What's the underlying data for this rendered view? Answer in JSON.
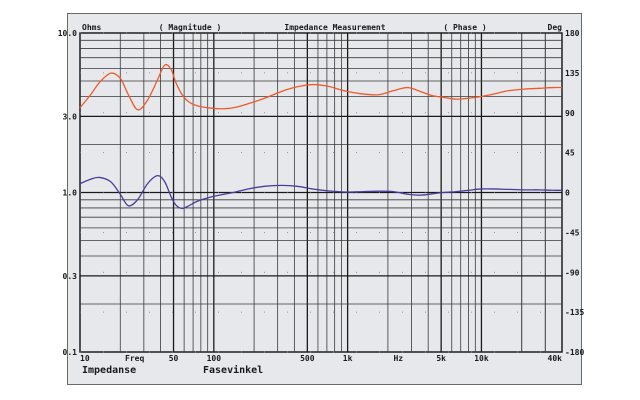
{
  "chart_data": {
    "type": "line",
    "title": "Impedance Measurement",
    "left_header": "Ohms",
    "left_center_header": "( Magnitude )",
    "right_center_header": "( Phase )",
    "right_header": "Deg",
    "xlabel_inline": "Freq",
    "xunit_inline": "Hz",
    "x_scale": "log",
    "y_scale": "log",
    "xlim": [
      10,
      40000
    ],
    "ylim": [
      0.1,
      10.0
    ],
    "y2lim": [
      -180,
      180
    ],
    "x_ticks": [
      {
        "value": 10,
        "label": "10"
      },
      {
        "value": 50,
        "label": "50"
      },
      {
        "value": 100,
        "label": "100"
      },
      {
        "value": 500,
        "label": "500"
      },
      {
        "value": 1000,
        "label": "1k"
      },
      {
        "value": 5000,
        "label": "5k"
      },
      {
        "value": 10000,
        "label": "10k"
      },
      {
        "value": 40000,
        "label": "40k"
      }
    ],
    "y_ticks": [
      {
        "value": 10.0,
        "label": "10.0"
      },
      {
        "value": 3.0,
        "label": "3.0"
      },
      {
        "value": 1.0,
        "label": "1.0"
      },
      {
        "value": 0.3,
        "label": "0.3"
      },
      {
        "value": 0.1,
        "label": "0.1"
      }
    ],
    "y2_ticks": [
      {
        "value": 180,
        "label": "180"
      },
      {
        "value": 135,
        "label": "135"
      },
      {
        "value": 90,
        "label": "90"
      },
      {
        "value": 45,
        "label": "45"
      },
      {
        "value": 0,
        "label": "0"
      },
      {
        "value": -45,
        "label": "-45"
      },
      {
        "value": -90,
        "label": "-90"
      },
      {
        "value": -135,
        "label": "-135"
      },
      {
        "value": -180,
        "label": "-180"
      }
    ],
    "grid": true,
    "series": [
      {
        "name": "Impedanse",
        "axis": "left",
        "color": "#f05a28",
        "x": [
          10,
          12,
          14,
          17,
          20,
          23,
          27,
          32,
          38,
          43,
          48,
          52,
          58,
          65,
          75,
          90,
          110,
          140,
          180,
          240,
          320,
          420,
          550,
          700,
          850,
          1000,
          1300,
          1700,
          2200,
          2800,
          3500,
          4300,
          5200,
          6500,
          8000,
          10000,
          12500,
          16000,
          21000,
          27000,
          34000,
          40000
        ],
        "y": [
          3.4,
          4.1,
          4.9,
          5.6,
          5.2,
          4.1,
          3.3,
          3.8,
          5.1,
          6.3,
          5.9,
          4.9,
          4.1,
          3.7,
          3.5,
          3.4,
          3.35,
          3.4,
          3.6,
          3.9,
          4.3,
          4.6,
          4.75,
          4.65,
          4.45,
          4.3,
          4.15,
          4.1,
          4.35,
          4.55,
          4.3,
          4.05,
          3.95,
          3.85,
          3.9,
          4.0,
          4.15,
          4.35,
          4.45,
          4.5,
          4.55,
          4.55
        ]
      },
      {
        "name": "Fasevinkel",
        "axis": "right",
        "color": "#4a3c9a",
        "x": [
          10,
          12,
          14,
          17,
          20,
          23,
          27,
          32,
          38,
          43,
          48,
          52,
          58,
          65,
          75,
          90,
          110,
          140,
          180,
          240,
          320,
          420,
          550,
          700,
          850,
          1000,
          1300,
          1700,
          2200,
          2800,
          3500,
          4300,
          5200,
          6500,
          8000,
          10000,
          12500,
          16000,
          21000,
          27000,
          34000,
          40000
        ],
        "y": [
          10,
          15,
          17,
          12,
          -2,
          -15,
          -8,
          10,
          19,
          12,
          -5,
          -14,
          -18,
          -15,
          -10,
          -6,
          -3,
          0,
          4,
          7,
          8,
          7,
          4,
          2,
          1,
          0.5,
          1,
          1.5,
          1,
          -2,
          -3,
          -1.5,
          0,
          1,
          2.5,
          4,
          4,
          3.5,
          3,
          3,
          2.5,
          2.5
        ]
      }
    ]
  }
}
